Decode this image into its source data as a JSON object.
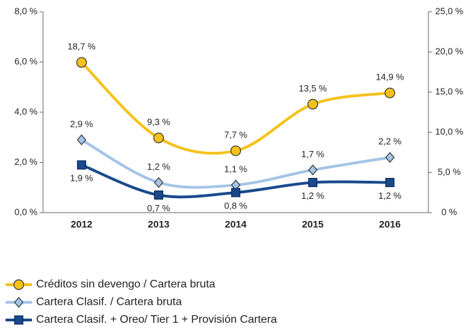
{
  "chart_data": {
    "type": "line",
    "categories": [
      "2012",
      "2013",
      "2014",
      "2015",
      "2016"
    ],
    "ylim": [
      0,
      8
    ],
    "yticks": [
      {
        "value": 0,
        "label": "0,0 %"
      },
      {
        "value": 2,
        "label": "2,0 %"
      },
      {
        "value": 4,
        "label": "4,0 %"
      },
      {
        "value": 6,
        "label": "6,0 %"
      },
      {
        "value": 8,
        "label": "8,0 %"
      }
    ],
    "y2lim": [
      0,
      25
    ],
    "y2ticks": [
      {
        "value": 0,
        "label": "0 %"
      },
      {
        "value": 5,
        "label": "5,0 %"
      },
      {
        "value": 10,
        "label": "10,0 %"
      },
      {
        "value": 15,
        "label": "15,0 %"
      },
      {
        "value": 20,
        "label": "20,0 %"
      },
      {
        "value": 25,
        "label": "25,0 %"
      }
    ],
    "series": [
      {
        "name": "Créditos sin devengo / Cartera bruta",
        "color": "#f5c21b",
        "marker": "circle",
        "axis": "y2",
        "values": [
          18.7,
          9.3,
          7.7,
          13.5,
          14.9
        ],
        "value_labels": [
          "18,7 %",
          "9,3 %",
          "7,7 %",
          "13,5 %",
          "14,9 %"
        ]
      },
      {
        "name": "Cartera Clasif. / Cartera bruta",
        "color": "#a4c4e6",
        "marker": "diamond",
        "values": [
          2.9,
          1.2,
          1.1,
          1.7,
          2.2
        ],
        "value_labels": [
          "2,9 %",
          "1,2 %",
          "1,1 %",
          "1,7 %",
          "2,2 %"
        ]
      },
      {
        "name": "Cartera Clasif. + Oreo/ Tier 1 + Provisión Cartera",
        "color": "#1a4a8c",
        "marker": "square",
        "values": [
          1.9,
          0.7,
          0.8,
          1.2,
          1.2
        ],
        "value_labels": [
          "1,9 %",
          "0,7 %",
          "0,8 %",
          "1,2 %",
          "1,2 %"
        ]
      }
    ]
  }
}
